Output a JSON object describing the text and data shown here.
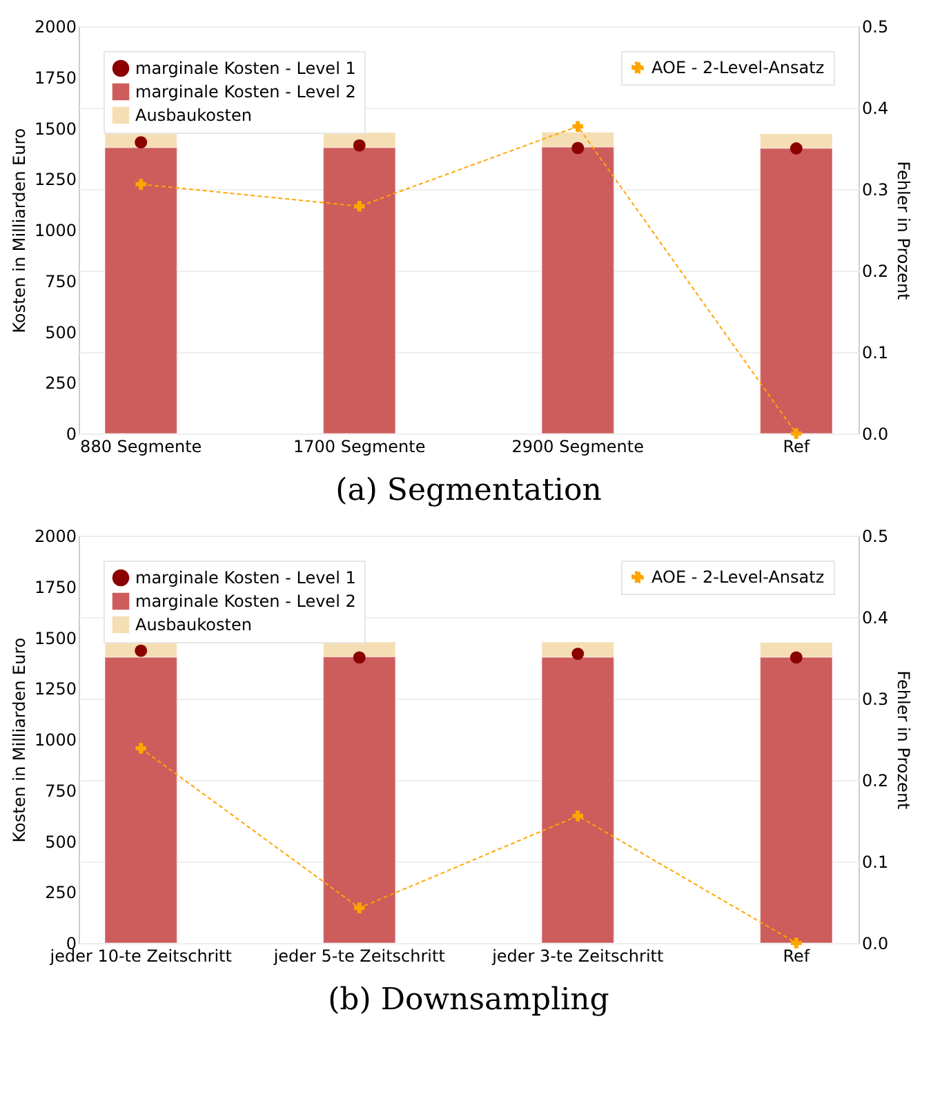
{
  "chart_data": [
    {
      "type": "bar",
      "title": "(a) Segmentation",
      "categories": [
        "880 Segmente",
        "1700 Segmente",
        "2900 Segmente",
        "Ref"
      ],
      "ylabel": "Kosten in Milliarden Euro",
      "y2label": "Fehler in Prozent",
      "stacked": true,
      "legend": "top left",
      "grid": "y2",
      "ylim": [
        0,
        2000
      ],
      "yticks": [
        0,
        250,
        500,
        750,
        1000,
        1250,
        1500,
        1750,
        2000
      ],
      "y2lim": [
        0,
        0.5
      ],
      "y2ticks": [
        {
          "value": 0,
          "label": "0.0"
        },
        0.1,
        0.2,
        0.3,
        0.4,
        0.5
      ],
      "series": [
        {
          "name": "marginale Kosten - Level 1",
          "type": "scatter",
          "marker": "circle",
          "color": "#8b0000",
          "x": [
            "880 Segmente",
            "1700 Segmente",
            "2900 Segmente",
            "Ref"
          ],
          "values": [
            1430,
            1415,
            1402,
            1400
          ]
        },
        {
          "name": "marginale Kosten - Level 2",
          "color": "#cd5c5c",
          "values": [
            1405,
            1405,
            1408,
            1402
          ]
        },
        {
          "name": "Ausbaukosten",
          "color": "#f5deb3",
          "values": [
            73,
            73,
            72,
            70
          ]
        },
        {
          "name": "AOE - 2-Level-Ansatz",
          "type": "line",
          "axis": "y2",
          "marker": "cross",
          "line_style": "dashed",
          "color": "#ffa500",
          "values": [
            0.306,
            0.279,
            0.377,
            0
          ]
        }
      ]
    },
    {
      "type": "bar",
      "title": "(b) Downsampling",
      "categories": [
        "jeder 10-te Zeitschritt",
        "jeder 5-te Zeitschritt",
        "jeder 3-te Zeitschritt",
        "Ref"
      ],
      "ylabel": "Kosten in Milliarden Euro",
      "y2label": "Fehler in Prozent",
      "stacked": true,
      "legend": "top left",
      "grid": "y2",
      "ylim": [
        0,
        2000
      ],
      "yticks": [
        0,
        250,
        500,
        750,
        1000,
        1250,
        1500,
        1750,
        2000
      ],
      "y2lim": [
        0,
        0.5
      ],
      "y2ticks": [
        {
          "value": 0,
          "label": "0.0"
        },
        0.1,
        0.2,
        0.3,
        0.4,
        0.5
      ],
      "series": [
        {
          "name": "marginale Kosten - Level 1",
          "type": "scatter",
          "marker": "circle",
          "color": "#8b0000",
          "x": [
            "jeder 10-te Zeitschritt",
            "jeder 5-te Zeitschritt",
            "jeder 3-te Zeitschritt",
            "Ref"
          ],
          "values": [
            1435,
            1402,
            1420,
            1402
          ]
        },
        {
          "name": "marginale Kosten - Level 2",
          "color": "#cd5c5c",
          "values": [
            1404,
            1406,
            1404,
            1404
          ]
        },
        {
          "name": "Ausbaukosten",
          "color": "#f5deb3",
          "values": [
            74,
            72,
            74,
            72
          ]
        },
        {
          "name": "AOE - 2-Level-Ansatz",
          "type": "line",
          "axis": "y2",
          "marker": "cross",
          "line_style": "dashed",
          "color": "#ffa500",
          "values": [
            0.239,
            0.043,
            0.156,
            0
          ]
        }
      ]
    }
  ]
}
